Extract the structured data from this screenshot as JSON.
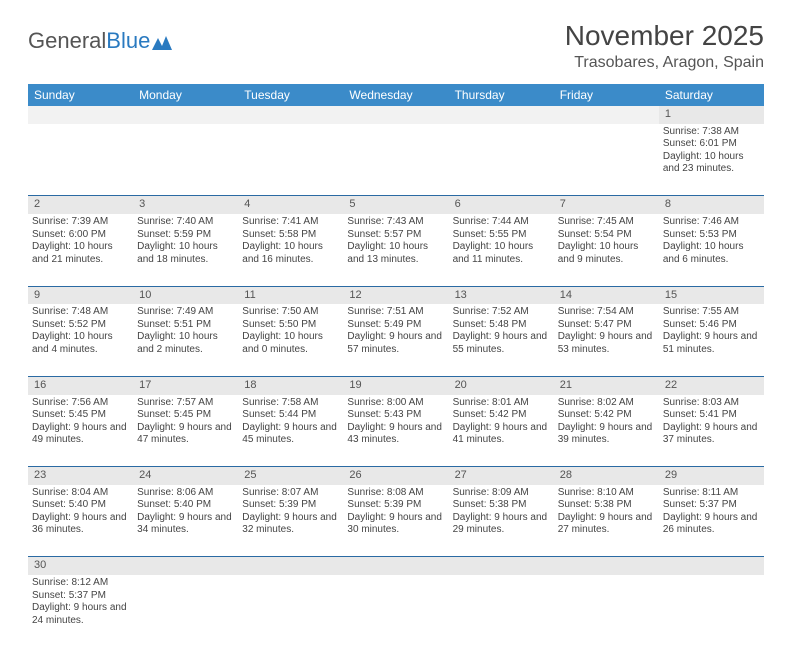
{
  "logo": {
    "part1": "General",
    "part2": "Blue"
  },
  "title": "November 2025",
  "location": "Trasobares, Aragon, Spain",
  "day_headers": [
    "Sunday",
    "Monday",
    "Tuesday",
    "Wednesday",
    "Thursday",
    "Friday",
    "Saturday"
  ],
  "colors": {
    "header_bg": "#3b8bc9",
    "header_text": "#ffffff",
    "daynum_bg": "#e8e8e8",
    "rule": "#2a6aa3",
    "logo_blue": "#2a7ac0"
  },
  "weeks": [
    [
      null,
      null,
      null,
      null,
      null,
      null,
      {
        "n": "1",
        "sr": "7:38 AM",
        "ss": "6:01 PM",
        "dl": "10 hours and 23 minutes."
      }
    ],
    [
      {
        "n": "2",
        "sr": "7:39 AM",
        "ss": "6:00 PM",
        "dl": "10 hours and 21 minutes."
      },
      {
        "n": "3",
        "sr": "7:40 AM",
        "ss": "5:59 PM",
        "dl": "10 hours and 18 minutes."
      },
      {
        "n": "4",
        "sr": "7:41 AM",
        "ss": "5:58 PM",
        "dl": "10 hours and 16 minutes."
      },
      {
        "n": "5",
        "sr": "7:43 AM",
        "ss": "5:57 PM",
        "dl": "10 hours and 13 minutes."
      },
      {
        "n": "6",
        "sr": "7:44 AM",
        "ss": "5:55 PM",
        "dl": "10 hours and 11 minutes."
      },
      {
        "n": "7",
        "sr": "7:45 AM",
        "ss": "5:54 PM",
        "dl": "10 hours and 9 minutes."
      },
      {
        "n": "8",
        "sr": "7:46 AM",
        "ss": "5:53 PM",
        "dl": "10 hours and 6 minutes."
      }
    ],
    [
      {
        "n": "9",
        "sr": "7:48 AM",
        "ss": "5:52 PM",
        "dl": "10 hours and 4 minutes."
      },
      {
        "n": "10",
        "sr": "7:49 AM",
        "ss": "5:51 PM",
        "dl": "10 hours and 2 minutes."
      },
      {
        "n": "11",
        "sr": "7:50 AM",
        "ss": "5:50 PM",
        "dl": "10 hours and 0 minutes."
      },
      {
        "n": "12",
        "sr": "7:51 AM",
        "ss": "5:49 PM",
        "dl": "9 hours and 57 minutes."
      },
      {
        "n": "13",
        "sr": "7:52 AM",
        "ss": "5:48 PM",
        "dl": "9 hours and 55 minutes."
      },
      {
        "n": "14",
        "sr": "7:54 AM",
        "ss": "5:47 PM",
        "dl": "9 hours and 53 minutes."
      },
      {
        "n": "15",
        "sr": "7:55 AM",
        "ss": "5:46 PM",
        "dl": "9 hours and 51 minutes."
      }
    ],
    [
      {
        "n": "16",
        "sr": "7:56 AM",
        "ss": "5:45 PM",
        "dl": "9 hours and 49 minutes."
      },
      {
        "n": "17",
        "sr": "7:57 AM",
        "ss": "5:45 PM",
        "dl": "9 hours and 47 minutes."
      },
      {
        "n": "18",
        "sr": "7:58 AM",
        "ss": "5:44 PM",
        "dl": "9 hours and 45 minutes."
      },
      {
        "n": "19",
        "sr": "8:00 AM",
        "ss": "5:43 PM",
        "dl": "9 hours and 43 minutes."
      },
      {
        "n": "20",
        "sr": "8:01 AM",
        "ss": "5:42 PM",
        "dl": "9 hours and 41 minutes."
      },
      {
        "n": "21",
        "sr": "8:02 AM",
        "ss": "5:42 PM",
        "dl": "9 hours and 39 minutes."
      },
      {
        "n": "22",
        "sr": "8:03 AM",
        "ss": "5:41 PM",
        "dl": "9 hours and 37 minutes."
      }
    ],
    [
      {
        "n": "23",
        "sr": "8:04 AM",
        "ss": "5:40 PM",
        "dl": "9 hours and 36 minutes."
      },
      {
        "n": "24",
        "sr": "8:06 AM",
        "ss": "5:40 PM",
        "dl": "9 hours and 34 minutes."
      },
      {
        "n": "25",
        "sr": "8:07 AM",
        "ss": "5:39 PM",
        "dl": "9 hours and 32 minutes."
      },
      {
        "n": "26",
        "sr": "8:08 AM",
        "ss": "5:39 PM",
        "dl": "9 hours and 30 minutes."
      },
      {
        "n": "27",
        "sr": "8:09 AM",
        "ss": "5:38 PM",
        "dl": "9 hours and 29 minutes."
      },
      {
        "n": "28",
        "sr": "8:10 AM",
        "ss": "5:38 PM",
        "dl": "9 hours and 27 minutes."
      },
      {
        "n": "29",
        "sr": "8:11 AM",
        "ss": "5:37 PM",
        "dl": "9 hours and 26 minutes."
      }
    ],
    [
      {
        "n": "30",
        "sr": "8:12 AM",
        "ss": "5:37 PM",
        "dl": "9 hours and 24 minutes."
      },
      null,
      null,
      null,
      null,
      null,
      null
    ]
  ],
  "labels": {
    "sunrise": "Sunrise: ",
    "sunset": "Sunset: ",
    "daylight": "Daylight: "
  }
}
